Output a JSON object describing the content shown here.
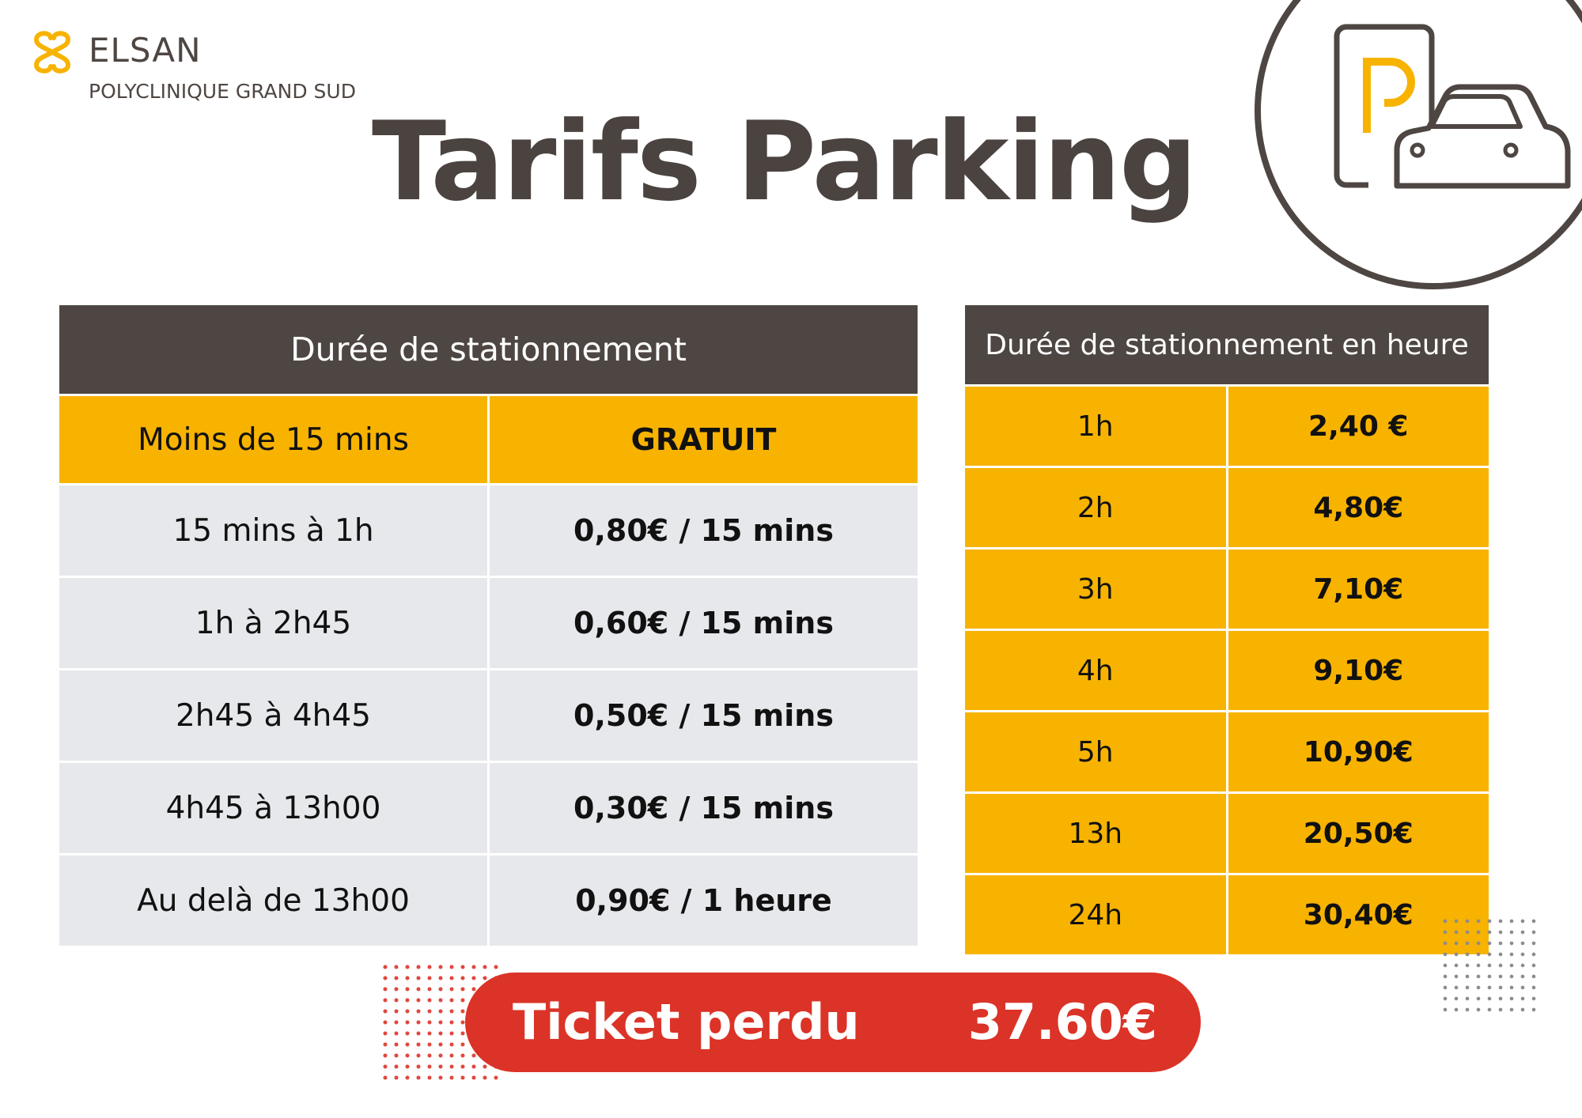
{
  "header": {
    "brand": "ELSAN",
    "clinic": "POLYCLINIQUE GRAND SUD",
    "title": "Tarifs Parking",
    "parking_icon": "parking-car-icon",
    "parking_letter": "P"
  },
  "colors": {
    "dark": "#4e4642",
    "accent": "#f7b300",
    "grey_row": "#e7e8eb",
    "red": "#db3327"
  },
  "left_table": {
    "header": "Durée de stationnement",
    "rows": [
      {
        "duration": "Moins de 15 mins",
        "price": "GRATUIT"
      },
      {
        "duration": "15 mins à 1h",
        "price": "0,80€ / 15 mins"
      },
      {
        "duration": "1h à 2h45",
        "price": "0,60€ / 15 mins"
      },
      {
        "duration": "2h45 à 4h45",
        "price": "0,50€ / 15 mins"
      },
      {
        "duration": "4h45 à 13h00",
        "price": "0,30€ / 15 mins"
      },
      {
        "duration": "Au delà de 13h00",
        "price": "0,90€ / 1 heure"
      }
    ]
  },
  "right_table": {
    "header": "Durée de stationnement en heure",
    "rows": [
      {
        "hours": "1h",
        "price": "2,40 €"
      },
      {
        "hours": "2h",
        "price": "4,80€"
      },
      {
        "hours": "3h",
        "price": "7,10€"
      },
      {
        "hours": "4h",
        "price": "9,10€"
      },
      {
        "hours": "5h",
        "price": "10,90€"
      },
      {
        "hours": "13h",
        "price": "20,50€"
      },
      {
        "hours": "24h",
        "price": "30,40€"
      }
    ]
  },
  "lost_ticket": {
    "label": "Ticket perdu",
    "price": "37.60€"
  }
}
